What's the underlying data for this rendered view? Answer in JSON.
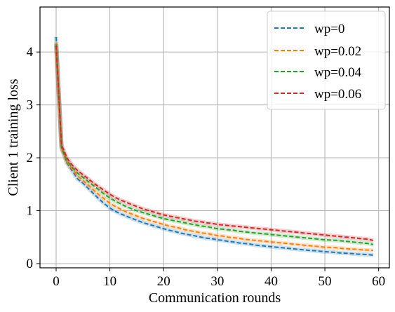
{
  "chart_data": {
    "type": "line",
    "title": "",
    "xlabel": "Communication rounds",
    "ylabel": "Client 1 training loss",
    "xlim": [
      -3,
      62
    ],
    "ylim": [
      -0.08,
      4.85
    ],
    "xticks": [
      0,
      10,
      20,
      30,
      40,
      50,
      60
    ],
    "yticks": [
      0,
      1,
      2,
      3,
      4
    ],
    "grid": true,
    "legend_position": "top-right",
    "line_style": "dashed",
    "x": [
      0,
      1,
      2,
      3,
      4,
      5,
      6,
      7,
      8,
      9,
      10,
      11,
      12,
      13,
      14,
      15,
      16,
      17,
      18,
      19,
      20,
      21,
      22,
      23,
      24,
      25,
      26,
      27,
      28,
      29,
      30,
      31,
      32,
      33,
      34,
      35,
      36,
      37,
      38,
      39,
      40,
      41,
      42,
      43,
      44,
      45,
      46,
      47,
      48,
      49,
      50,
      51,
      52,
      53,
      54,
      55,
      56,
      57,
      58,
      59
    ],
    "series": [
      {
        "name": "wp=0",
        "color": "#1f77b4",
        "values": [
          4.28,
          2.2,
          1.9,
          1.75,
          1.6,
          1.52,
          1.42,
          1.32,
          1.22,
          1.13,
          1.05,
          0.99,
          0.94,
          0.9,
          0.86,
          0.82,
          0.78,
          0.75,
          0.72,
          0.69,
          0.66,
          0.63,
          0.61,
          0.58,
          0.56,
          0.54,
          0.52,
          0.5,
          0.48,
          0.47,
          0.45,
          0.44,
          0.42,
          0.41,
          0.39,
          0.38,
          0.37,
          0.35,
          0.34,
          0.33,
          0.32,
          0.31,
          0.3,
          0.29,
          0.28,
          0.27,
          0.26,
          0.25,
          0.245,
          0.235,
          0.225,
          0.22,
          0.21,
          0.2,
          0.195,
          0.19,
          0.18,
          0.175,
          0.17,
          0.16
        ]
      },
      {
        "name": "wp=0.02",
        "color": "#ff7f0e",
        "values": [
          4.18,
          2.18,
          1.92,
          1.78,
          1.66,
          1.57,
          1.48,
          1.39,
          1.3,
          1.22,
          1.14,
          1.08,
          1.03,
          0.98,
          0.94,
          0.9,
          0.86,
          0.83,
          0.8,
          0.77,
          0.74,
          0.71,
          0.69,
          0.67,
          0.64,
          0.62,
          0.6,
          0.58,
          0.57,
          0.55,
          0.53,
          0.52,
          0.5,
          0.49,
          0.48,
          0.46,
          0.45,
          0.44,
          0.43,
          0.42,
          0.41,
          0.4,
          0.39,
          0.38,
          0.37,
          0.36,
          0.35,
          0.34,
          0.33,
          0.32,
          0.31,
          0.305,
          0.3,
          0.29,
          0.28,
          0.275,
          0.27,
          0.26,
          0.255,
          0.25
        ]
      },
      {
        "name": "wp=0.04",
        "color": "#2ca02c",
        "values": [
          4.15,
          2.2,
          1.95,
          1.82,
          1.71,
          1.63,
          1.55,
          1.47,
          1.39,
          1.31,
          1.24,
          1.18,
          1.13,
          1.08,
          1.04,
          1.0,
          0.97,
          0.94,
          0.91,
          0.88,
          0.85,
          0.83,
          0.81,
          0.79,
          0.77,
          0.75,
          0.73,
          0.71,
          0.7,
          0.68,
          0.66,
          0.65,
          0.64,
          0.63,
          0.61,
          0.6,
          0.59,
          0.58,
          0.57,
          0.56,
          0.55,
          0.54,
          0.53,
          0.52,
          0.51,
          0.5,
          0.49,
          0.48,
          0.47,
          0.46,
          0.45,
          0.445,
          0.44,
          0.43,
          0.42,
          0.41,
          0.4,
          0.39,
          0.38,
          0.36
        ]
      },
      {
        "name": "wp=0.06",
        "color": "#d62728",
        "values": [
          4.12,
          2.25,
          2.0,
          1.86,
          1.76,
          1.68,
          1.6,
          1.52,
          1.45,
          1.38,
          1.31,
          1.25,
          1.2,
          1.16,
          1.12,
          1.08,
          1.04,
          1.01,
          0.98,
          0.95,
          0.92,
          0.9,
          0.88,
          0.86,
          0.84,
          0.82,
          0.8,
          0.79,
          0.77,
          0.76,
          0.74,
          0.73,
          0.72,
          0.71,
          0.7,
          0.69,
          0.68,
          0.67,
          0.66,
          0.65,
          0.64,
          0.63,
          0.62,
          0.61,
          0.6,
          0.59,
          0.58,
          0.57,
          0.56,
          0.55,
          0.54,
          0.53,
          0.52,
          0.51,
          0.5,
          0.49,
          0.48,
          0.47,
          0.46,
          0.44
        ]
      }
    ]
  }
}
